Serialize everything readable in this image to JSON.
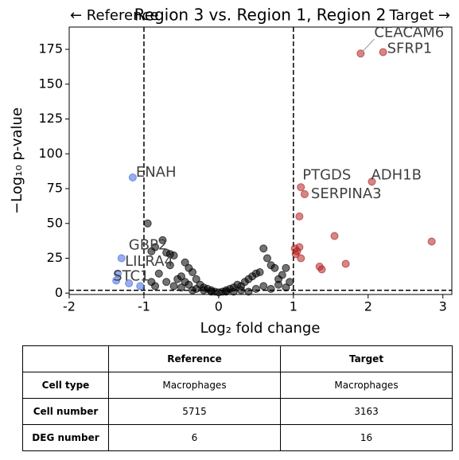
{
  "chart_data": {
    "type": "scatter",
    "title": "Region 3 vs. Region 1, Region 2",
    "left_header": "← Reference",
    "right_header": "Target →",
    "x_label": "Log₂ fold change",
    "y_label": "−Log₁₀ p-value",
    "xlim": [
      -2,
      3.12
    ],
    "ylim": [
      -1,
      191
    ],
    "xticks": [
      -2,
      -1,
      0,
      1,
      2,
      3
    ],
    "yticks": [
      0,
      25,
      50,
      75,
      100,
      125,
      150,
      175
    ],
    "thresholds": {
      "x": [
        -1,
        1
      ],
      "y": 2
    },
    "series": [
      {
        "color": "#000000",
        "x": [
          -0.95,
          -0.9,
          -0.85,
          -0.75,
          -0.7,
          -0.65,
          -0.6,
          -0.45,
          -0.4,
          -0.35,
          -0.3,
          -0.5,
          -0.55,
          -0.8,
          -0.9,
          -0.25,
          -0.2,
          -0.15,
          -0.1,
          -0.05,
          0,
          0.05,
          0.1,
          0.15,
          0.2,
          0.25,
          0.3,
          0.35,
          0.4,
          0.45,
          0.5,
          0.55,
          0.6,
          0.65,
          0.7,
          0.75,
          0.8,
          0.85,
          0.9,
          0.95,
          -0.6,
          -0.4,
          -0.3,
          -0.2,
          -0.7,
          -0.5,
          0.3,
          0.5,
          0.6,
          0.8,
          0.9,
          -0.35,
          -0.45,
          0.2,
          0.1,
          -0.1,
          0.4,
          0.7,
          -0.65,
          -0.85
        ],
        "values": [
          50,
          30,
          33,
          38,
          29,
          28,
          27,
          22,
          18,
          15,
          10,
          12,
          10,
          14,
          8,
          6,
          4,
          3,
          2,
          1,
          0.5,
          1,
          2,
          3,
          4,
          6,
          5,
          8,
          10,
          12,
          14,
          15,
          32,
          25,
          20,
          18,
          10,
          13,
          18,
          8,
          5,
          6,
          3,
          2,
          8,
          4,
          2,
          3,
          5,
          6,
          4,
          2,
          8,
          1,
          1,
          1,
          1,
          3,
          20,
          5
        ]
      },
      {
        "color": "#b22222",
        "x": [
          1.9,
          2.2,
          2.05,
          1.1,
          1.15,
          1.08,
          1.55,
          2.85,
          1.08,
          1.05,
          1.02,
          1.03,
          1.1,
          1.7,
          1.35,
          1.38
        ],
        "values": [
          172,
          173,
          80,
          76,
          71,
          55,
          41,
          37,
          33,
          30,
          32,
          28,
          25,
          21,
          19,
          17
        ],
        "point_labels": [
          "CEACAM6",
          "SFRP1",
          "ADH1B",
          "PTGDS",
          "SERPINA3",
          null,
          null,
          null,
          null,
          null,
          null,
          null,
          null,
          null,
          null,
          null
        ]
      },
      {
        "color": "#4169e1",
        "x": [
          -1.15,
          -1.3,
          -1.35,
          -1.37,
          -1.2,
          -1.05
        ],
        "values": [
          83,
          25,
          14,
          9,
          7,
          5
        ],
        "point_labels": [
          "ENAH",
          "GBP2",
          "LILRA4",
          "STC1",
          null,
          null
        ]
      }
    ]
  },
  "table": {
    "header": [
      "Reference",
      "Target"
    ],
    "rows": [
      [
        "Cell type",
        "Macrophages",
        "Macrophages"
      ],
      [
        "Cell number",
        "5715",
        "3163"
      ],
      [
        "DEG number",
        "6",
        "16"
      ]
    ]
  }
}
